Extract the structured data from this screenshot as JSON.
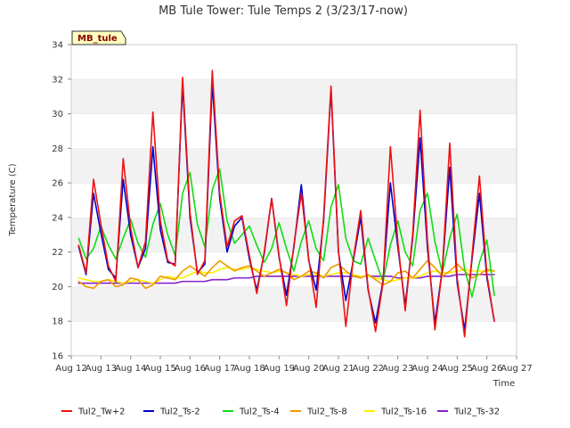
{
  "chart_data": {
    "type": "line",
    "title": "MB Tule Tower: Tule Temps 2 (3/23/17-now)",
    "xlabel": "Time",
    "ylabel": "Temperature (C)",
    "tag": "MB_tule",
    "x_ticks": [
      "Aug 12",
      "Aug 13",
      "Aug 14",
      "Aug 15",
      "Aug 16",
      "Aug 17",
      "Aug 18",
      "Aug 19",
      "Aug 20",
      "Aug 21",
      "Aug 22",
      "Aug 23",
      "Aug 24",
      "Aug 25",
      "Aug 26",
      "Aug 27"
    ],
    "y_ticks": [
      "16",
      "18",
      "20",
      "22",
      "24",
      "26",
      "28",
      "30",
      "32",
      "34"
    ],
    "xlim": [
      "Aug 12",
      "Aug 27"
    ],
    "ylim": [
      16,
      34
    ],
    "grid": "horizontal bands",
    "legend_position": "bottom",
    "x": [
      "Aug 12 06:00",
      "Aug 12 12:00",
      "Aug 12 18:00",
      "Aug 13 00:00",
      "Aug 13 06:00",
      "Aug 13 12:00",
      "Aug 13 18:00",
      "Aug 14 00:00",
      "Aug 14 06:00",
      "Aug 14 12:00",
      "Aug 14 18:00",
      "Aug 15 00:00",
      "Aug 15 06:00",
      "Aug 15 12:00",
      "Aug 15 18:00",
      "Aug 16 00:00",
      "Aug 16 06:00",
      "Aug 16 12:00",
      "Aug 16 18:00",
      "Aug 17 00:00",
      "Aug 17 06:00",
      "Aug 17 12:00",
      "Aug 17 18:00",
      "Aug 18 00:00",
      "Aug 18 06:00",
      "Aug 18 12:00",
      "Aug 18 18:00",
      "Aug 19 00:00",
      "Aug 19 06:00",
      "Aug 19 12:00",
      "Aug 19 18:00",
      "Aug 20 00:00",
      "Aug 20 06:00",
      "Aug 20 12:00",
      "Aug 20 18:00",
      "Aug 21 00:00",
      "Aug 21 06:00",
      "Aug 21 12:00",
      "Aug 21 18:00",
      "Aug 22 00:00",
      "Aug 22 06:00",
      "Aug 22 12:00",
      "Aug 22 18:00",
      "Aug 23 00:00",
      "Aug 23 06:00",
      "Aug 23 12:00",
      "Aug 23 18:00",
      "Aug 24 00:00",
      "Aug 24 06:00",
      "Aug 24 12:00",
      "Aug 24 18:00",
      "Aug 25 00:00",
      "Aug 25 06:00",
      "Aug 25 12:00",
      "Aug 25 18:00",
      "Aug 26 00:00",
      "Aug 26 06:00"
    ],
    "series": [
      {
        "name": "Tul2_Tw+2",
        "color": "#ee1111",
        "values": [
          22.4,
          20.8,
          26.2,
          23.6,
          21.2,
          20.3,
          27.4,
          23.4,
          21.1,
          22.6,
          30.1,
          23.8,
          21.5,
          21.2,
          32.1,
          24.3,
          20.7,
          21.5,
          32.5,
          25.4,
          22.3,
          23.8,
          24.1,
          21.8,
          19.6,
          22.0,
          25.1,
          21.8,
          18.9,
          22.4,
          25.4,
          21.6,
          18.8,
          24.0,
          31.6,
          22.1,
          17.7,
          21.6,
          24.4,
          19.9,
          17.4,
          20.2,
          28.1,
          22.6,
          18.6,
          23.0,
          30.2,
          22.6,
          17.5,
          21.0,
          28.3,
          20.5,
          17.1,
          21.8,
          26.4,
          20.7,
          18.0
        ]
      },
      {
        "name": "Tul2_Ts-2",
        "color": "#0000cc",
        "values": [
          22.3,
          20.7,
          25.4,
          23.1,
          21.0,
          20.5,
          26.2,
          23.0,
          21.1,
          22.2,
          28.1,
          23.3,
          21.4,
          21.3,
          31.7,
          24.0,
          20.8,
          21.3,
          31.8,
          25.1,
          22.0,
          23.5,
          24.0,
          21.6,
          19.8,
          21.9,
          25.1,
          21.7,
          19.5,
          22.3,
          25.9,
          21.5,
          19.8,
          23.8,
          31.4,
          22.0,
          19.2,
          21.5,
          24.0,
          19.8,
          17.9,
          20.3,
          26.0,
          22.3,
          18.9,
          22.8,
          28.6,
          22.2,
          17.9,
          21.0,
          26.9,
          20.2,
          17.5,
          21.6,
          25.4,
          20.5,
          18.0
        ]
      },
      {
        "name": "Tul2_Ts-4",
        "color": "#11dd11",
        "values": [
          22.8,
          21.6,
          22.2,
          23.5,
          22.4,
          21.6,
          22.8,
          23.9,
          22.5,
          21.7,
          23.6,
          24.8,
          23.0,
          21.8,
          25.4,
          26.6,
          23.6,
          22.3,
          25.6,
          26.8,
          23.8,
          22.5,
          23.0,
          23.5,
          22.4,
          21.4,
          22.2,
          23.7,
          22.2,
          20.9,
          22.6,
          23.8,
          22.2,
          21.5,
          24.6,
          25.9,
          22.8,
          21.5,
          21.3,
          22.8,
          21.5,
          20.3,
          22.4,
          23.8,
          22.0,
          21.2,
          24.4,
          25.4,
          22.6,
          20.8,
          22.8,
          24.2,
          21.0,
          19.4,
          21.4,
          22.7,
          19.5
        ]
      },
      {
        "name": "Tul2_Ts-8",
        "color": "#ee9900",
        "values": [
          20.3,
          20.0,
          19.9,
          20.3,
          20.4,
          20.0,
          20.1,
          20.5,
          20.4,
          19.9,
          20.1,
          20.6,
          20.5,
          20.4,
          20.9,
          21.2,
          20.9,
          20.6,
          21.1,
          21.5,
          21.2,
          20.9,
          21.1,
          21.2,
          20.9,
          20.6,
          20.8,
          21.0,
          20.8,
          20.4,
          20.6,
          20.9,
          20.8,
          20.5,
          21.1,
          21.3,
          20.9,
          20.6,
          20.5,
          20.7,
          20.4,
          20.1,
          20.3,
          20.8,
          20.9,
          20.5,
          21.0,
          21.5,
          21.1,
          20.6,
          20.9,
          21.3,
          20.9,
          20.5,
          20.7,
          21.0,
          20.9
        ]
      },
      {
        "name": "Tul2_Ts-16",
        "color": "#ffee00",
        "values": [
          20.5,
          20.4,
          20.3,
          20.3,
          20.4,
          20.3,
          20.2,
          20.3,
          20.4,
          20.3,
          20.2,
          20.4,
          20.6,
          20.5,
          20.5,
          20.7,
          20.9,
          20.8,
          20.8,
          21.0,
          21.1,
          21.0,
          21.0,
          21.1,
          21.0,
          20.9,
          20.8,
          20.9,
          20.8,
          20.7,
          20.6,
          20.7,
          20.7,
          20.6,
          20.7,
          20.8,
          20.8,
          20.7,
          20.6,
          20.6,
          20.5,
          20.4,
          20.3,
          20.4,
          20.5,
          20.5,
          20.6,
          20.8,
          20.9,
          20.8,
          20.8,
          20.9,
          21.0,
          20.9,
          20.9,
          20.9,
          20.9
        ]
      },
      {
        "name": "Tul2_Ts-32",
        "color": "#8822cc",
        "values": [
          20.2,
          20.2,
          20.2,
          20.2,
          20.2,
          20.2,
          20.2,
          20.2,
          20.2,
          20.2,
          20.2,
          20.2,
          20.2,
          20.2,
          20.3,
          20.3,
          20.3,
          20.3,
          20.4,
          20.4,
          20.4,
          20.5,
          20.5,
          20.5,
          20.6,
          20.6,
          20.6,
          20.6,
          20.6,
          20.6,
          20.6,
          20.6,
          20.6,
          20.6,
          20.6,
          20.6,
          20.6,
          20.6,
          20.6,
          20.6,
          20.6,
          20.6,
          20.6,
          20.5,
          20.5,
          20.5,
          20.5,
          20.6,
          20.6,
          20.6,
          20.6,
          20.7,
          20.7,
          20.7,
          20.7,
          20.7,
          20.7
        ]
      }
    ]
  }
}
